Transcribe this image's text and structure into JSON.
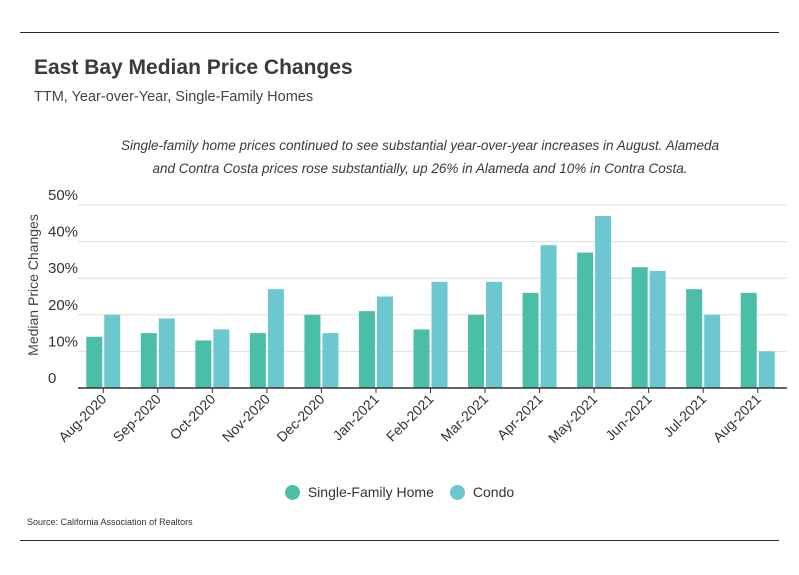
{
  "header": {
    "title": "East Bay Median Price Changes",
    "subtitle": "TTM, Year-over-Year, Single-Family Homes"
  },
  "annotation": {
    "line1": "Single-family home prices continued to see substantial year-over-year increases in August. Alameda",
    "line2": "and Contra Costa prices rose substantially, up 26% in Alameda and 10% in Contra Costa."
  },
  "footer": {
    "source": "Source:  California Association of Realtors"
  },
  "colors": {
    "single_family": "#4bbea7",
    "condo": "#6cc7d1",
    "gridline": "#dddddd",
    "axis": "#333333"
  },
  "chart_data": {
    "type": "bar",
    "title": "East Bay Median Price Changes",
    "subtitle": "TTM, Year-over-Year, Single-Family Homes",
    "xlabel": "",
    "ylabel": "Median Price Changes",
    "ylim": [
      0,
      50
    ],
    "yticks": [
      0,
      10,
      20,
      30,
      40,
      50
    ],
    "ytick_labels": [
      "0",
      "10%",
      "20%",
      "30%",
      "40%",
      "50%"
    ],
    "grid": true,
    "legend_position": "bottom",
    "categories": [
      "Aug-2020",
      "Sep-2020",
      "Oct-2020",
      "Nov-2020",
      "Dec-2020",
      "Jan-2021",
      "Feb-2021",
      "Mar-2021",
      "Apr-2021",
      "May-2021",
      "Jun-2021",
      "Jul-2021",
      "Aug-2021"
    ],
    "series": [
      {
        "name": "Single-Family Home",
        "values": [
          14,
          15,
          13,
          15,
          20,
          21,
          16,
          20,
          26,
          37,
          33,
          27,
          26
        ]
      },
      {
        "name": "Condo",
        "values": [
          20,
          19,
          16,
          27,
          15,
          25,
          29,
          29,
          39,
          47,
          32,
          20,
          10
        ]
      }
    ]
  }
}
